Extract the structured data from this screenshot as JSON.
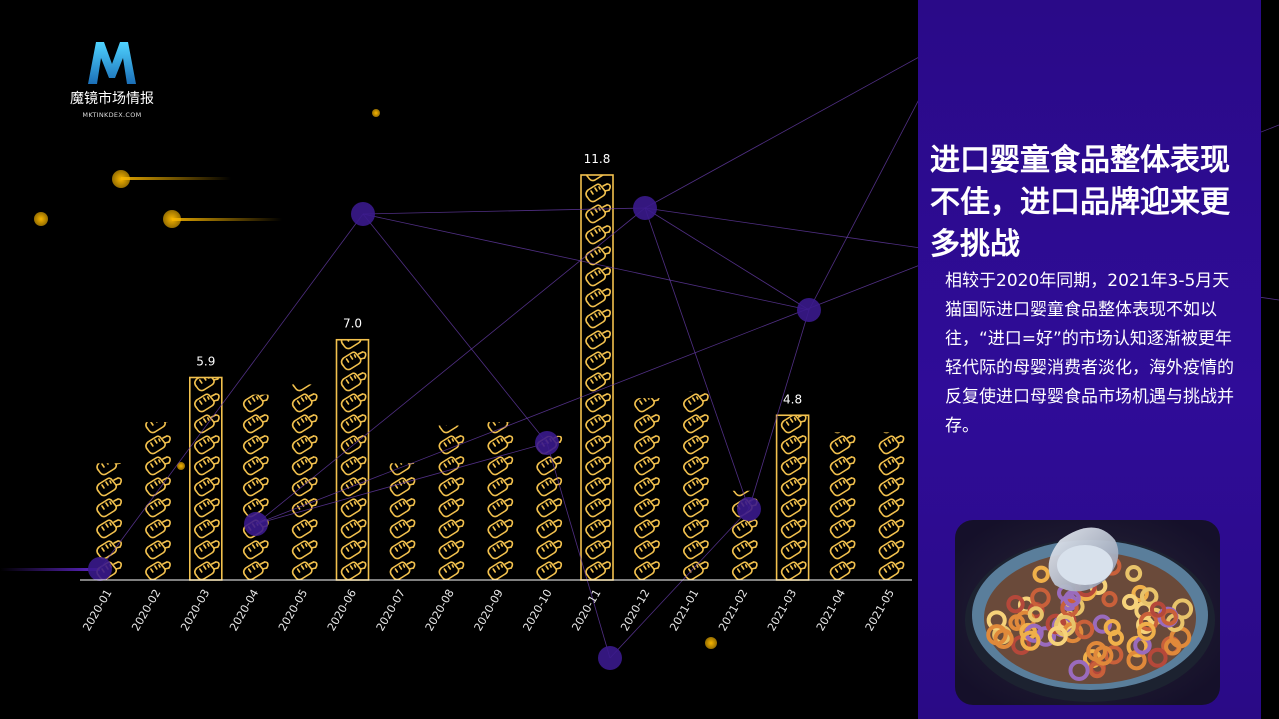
{
  "brand": {
    "name": "魔镜市场情报",
    "url": "MKTINKDEX.COM",
    "initial": "M"
  },
  "headline": "进口婴童食品整体表现不佳，进口品牌迎来更多挑战",
  "body": "相较于2020年同期，2021年3-5月天猫国际进口婴童食品整体表现不如以往，“进口=好”的市场认知逐渐被更年轻代际的母婴消费者淡化，海外疫情的反复使进口母婴食品市场机遇与挑战并存。",
  "colors": {
    "accent": "#f2c14e",
    "highlight": "#f7b500",
    "panel": "#2d0b92",
    "node": "#3a1a8c"
  },
  "chart_data": {
    "type": "bar",
    "icon": "baby-bottle-icon",
    "categories": [
      "2020-01",
      "2020-02",
      "2020-03",
      "2020-04",
      "2020-05",
      "2020-06",
      "2020-07",
      "2020-08",
      "2020-09",
      "2020-10",
      "2020-11",
      "2020-12",
      "2021-01",
      "2021-02",
      "2021-03",
      "2021-04",
      "2021-05"
    ],
    "values": [
      3.4,
      4.6,
      5.9,
      5.4,
      5.7,
      7.0,
      3.4,
      4.5,
      4.6,
      4.2,
      11.8,
      5.3,
      5.5,
      2.6,
      4.8,
      4.3,
      4.3
    ],
    "highlighted": [
      "2020-03",
      "2020-06",
      "2020-11",
      "2021-03"
    ],
    "labels": [
      {
        "category": "2020-03",
        "text": "5.9"
      },
      {
        "category": "2020-06",
        "text": "7.0"
      },
      {
        "category": "2020-11",
        "text": "11.8"
      },
      {
        "category": "2021-03",
        "text": "4.8"
      }
    ],
    "ylim": [
      0,
      12
    ],
    "grid": false
  }
}
